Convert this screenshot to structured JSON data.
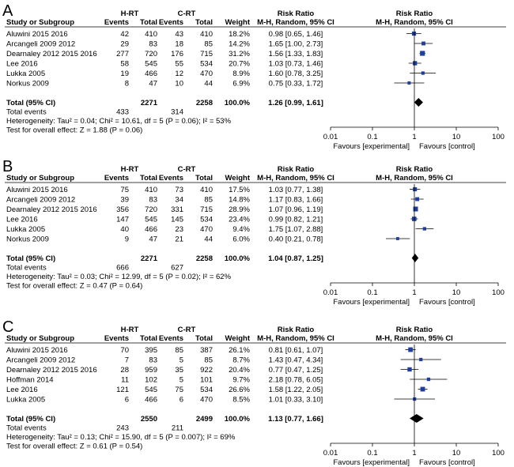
{
  "colors": {
    "square": "#1f3f9e",
    "line": "#000000",
    "diamond": "#000000"
  },
  "headers": {
    "group1": "H-RT",
    "group2": "C-RT",
    "study": "Study or Subgroup",
    "events": "Events",
    "total": "Total",
    "weight": "Weight",
    "rr_title": "Risk Ratio",
    "rr_method": "M-H, Random, 95% CI"
  },
  "footer": {
    "total_label": "Total (95% CI)",
    "events_label": "Total events",
    "favours_left": "Favours [experimental]",
    "favours_right": "Favours [control]",
    "ticks": [
      "0.01",
      "0.1",
      "1",
      "10",
      "100"
    ]
  },
  "chart_data": [
    {
      "type": "forest",
      "panel": "A",
      "axis": {
        "scale": "log",
        "range": [
          0.01,
          100
        ],
        "ticks": [
          0.01,
          0.1,
          1,
          10,
          100
        ]
      },
      "studies": [
        {
          "name": "Aluwini 2015 2016",
          "e1": "42",
          "n1": "410",
          "e2": "43",
          "n2": "410",
          "weight": "18.2%",
          "ci_text": "0.98 [0.65, 1.46]",
          "rr": 0.98,
          "lo": 0.65,
          "hi": 1.46
        },
        {
          "name": "Arcangeli 2009 2012",
          "e1": "29",
          "n1": "83",
          "e2": "18",
          "n2": "85",
          "weight": "14.2%",
          "ci_text": "1.65 [1.00, 2.73]",
          "rr": 1.65,
          "lo": 1.0,
          "hi": 2.73
        },
        {
          "name": "Dearnaley 2012 2015 2016",
          "e1": "277",
          "n1": "720",
          "e2": "176",
          "n2": "715",
          "weight": "31.2%",
          "ci_text": "1.56 [1.33, 1.83]",
          "rr": 1.56,
          "lo": 1.33,
          "hi": 1.83
        },
        {
          "name": "Lee 2016",
          "e1": "58",
          "n1": "545",
          "e2": "55",
          "n2": "534",
          "weight": "20.7%",
          "ci_text": "1.03 [0.73, 1.46]",
          "rr": 1.03,
          "lo": 0.73,
          "hi": 1.46
        },
        {
          "name": "Lukka 2005",
          "e1": "19",
          "n1": "466",
          "e2": "12",
          "n2": "470",
          "weight": "8.9%",
          "ci_text": "1.60 [0.78, 3.25]",
          "rr": 1.6,
          "lo": 0.78,
          "hi": 3.25
        },
        {
          "name": "Norkus 2009",
          "e1": "8",
          "n1": "47",
          "e2": "10",
          "n2": "44",
          "weight": "6.9%",
          "ci_text": "0.75 [0.33, 1.72]",
          "rr": 0.75,
          "lo": 0.33,
          "hi": 1.72
        }
      ],
      "total": {
        "n1": "2271",
        "n2": "2258",
        "weight": "100.0%",
        "ci_text": "1.26 [0.99, 1.61]",
        "rr": 1.26,
        "lo": 0.99,
        "hi": 1.61
      },
      "total_events": {
        "e1": "433",
        "e2": "314"
      },
      "heterogeneity": "Heterogeneity: Tau² = 0.04; Chi² = 10.61, df = 5 (P = 0.06); I² = 53%",
      "overall": "Test for overall effect: Z = 1.88 (P = 0.06)"
    },
    {
      "type": "forest",
      "panel": "B",
      "axis": {
        "scale": "log",
        "range": [
          0.01,
          100
        ],
        "ticks": [
          0.01,
          0.1,
          1,
          10,
          100
        ]
      },
      "studies": [
        {
          "name": "Aluwini 2015 2016",
          "e1": "75",
          "n1": "410",
          "e2": "73",
          "n2": "410",
          "weight": "17.5%",
          "ci_text": "1.03 [0.77, 1.38]",
          "rr": 1.03,
          "lo": 0.77,
          "hi": 1.38
        },
        {
          "name": "Arcangeli 2009 2012",
          "e1": "39",
          "n1": "83",
          "e2": "34",
          "n2": "85",
          "weight": "14.8%",
          "ci_text": "1.17 [0.83, 1.66]",
          "rr": 1.17,
          "lo": 0.83,
          "hi": 1.66
        },
        {
          "name": "Dearnaley 2012 2015 2016",
          "e1": "356",
          "n1": "720",
          "e2": "331",
          "n2": "715",
          "weight": "28.9%",
          "ci_text": "1.07 [0.96, 1.19]",
          "rr": 1.07,
          "lo": 0.96,
          "hi": 1.19
        },
        {
          "name": "Lee 2016",
          "e1": "147",
          "n1": "545",
          "e2": "145",
          "n2": "534",
          "weight": "23.4%",
          "ci_text": "0.99 [0.82, 1.21]",
          "rr": 0.99,
          "lo": 0.82,
          "hi": 1.21
        },
        {
          "name": "Lukka 2005",
          "e1": "40",
          "n1": "466",
          "e2": "23",
          "n2": "470",
          "weight": "9.4%",
          "ci_text": "1.75 [1.07, 2.88]",
          "rr": 1.75,
          "lo": 1.07,
          "hi": 2.88
        },
        {
          "name": "Norkus 2009",
          "e1": "9",
          "n1": "47",
          "e2": "21",
          "n2": "44",
          "weight": "6.0%",
          "ci_text": "0.40 [0.21, 0.78]",
          "rr": 0.4,
          "lo": 0.21,
          "hi": 0.78
        }
      ],
      "total": {
        "n1": "2271",
        "n2": "2258",
        "weight": "100.0%",
        "ci_text": "1.04 [0.87, 1.25]",
        "rr": 1.04,
        "lo": 0.87,
        "hi": 1.25
      },
      "total_events": {
        "e1": "666",
        "e2": "627"
      },
      "heterogeneity": "Heterogeneity: Tau² = 0.03; Chi² = 12.99, df = 5 (P = 0.02); I² = 62%",
      "overall": "Test for overall effect: Z = 0.47 (P = 0.64)"
    },
    {
      "type": "forest",
      "panel": "C",
      "axis": {
        "scale": "log",
        "range": [
          0.01,
          100
        ],
        "ticks": [
          0.01,
          0.1,
          1,
          10,
          100
        ]
      },
      "studies": [
        {
          "name": "Aluwini 2015 2016",
          "e1": "70",
          "n1": "395",
          "e2": "85",
          "n2": "387",
          "weight": "26.1%",
          "ci_text": "0.81 [0.61, 1.07]",
          "rr": 0.81,
          "lo": 0.61,
          "hi": 1.07
        },
        {
          "name": "Arcangeli 2009 2012",
          "e1": "7",
          "n1": "83",
          "e2": "5",
          "n2": "85",
          "weight": "8.7%",
          "ci_text": "1.43 [0.47, 4.34]",
          "rr": 1.43,
          "lo": 0.47,
          "hi": 4.34
        },
        {
          "name": "Dearnaley 2012 2015 2016",
          "e1": "28",
          "n1": "959",
          "e2": "35",
          "n2": "922",
          "weight": "20.4%",
          "ci_text": "0.77 [0.47, 1.25]",
          "rr": 0.77,
          "lo": 0.47,
          "hi": 1.25
        },
        {
          "name": "Hoffman 2014",
          "e1": "11",
          "n1": "102",
          "e2": "5",
          "n2": "101",
          "weight": "9.7%",
          "ci_text": "2.18 [0.78, 6.05]",
          "rr": 2.18,
          "lo": 0.78,
          "hi": 6.05
        },
        {
          "name": "Lee 2016",
          "e1": "121",
          "n1": "545",
          "e2": "75",
          "n2": "534",
          "weight": "26.6%",
          "ci_text": "1.58 [1.22, 2.05]",
          "rr": 1.58,
          "lo": 1.22,
          "hi": 2.05
        },
        {
          "name": "Lukka 2005",
          "e1": "6",
          "n1": "466",
          "e2": "6",
          "n2": "470",
          "weight": "8.5%",
          "ci_text": "1.01 [0.33, 3.10]",
          "rr": 1.01,
          "lo": 0.33,
          "hi": 3.1
        }
      ],
      "total": {
        "n1": "2550",
        "n2": "2499",
        "weight": "100.0%",
        "ci_text": "1.13 [0.77, 1.66]",
        "rr": 1.13,
        "lo": 0.77,
        "hi": 1.66
      },
      "total_events": {
        "e1": "243",
        "e2": "211"
      },
      "heterogeneity": "Heterogeneity: Tau² = 0.13; Chi² = 15.90, df = 5 (P = 0.007); I² = 69%",
      "overall": "Test for overall effect: Z = 0.61 (P = 0.54)"
    }
  ]
}
